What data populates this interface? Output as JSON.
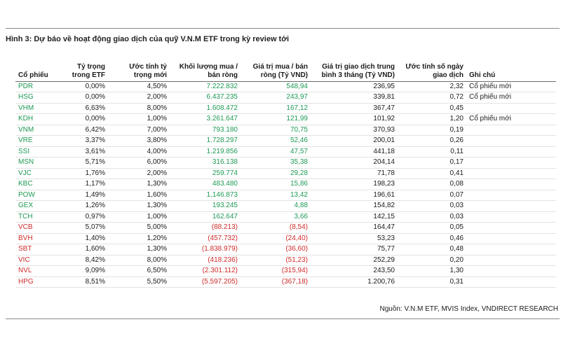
{
  "title": "Hình 3: Dự báo về hoạt động giao dịch của quỹ V.N.M ETF trong kỳ review tới",
  "headers": {
    "ticker": "Cổ phiếu",
    "weight_etf": "Tỷ trọng trong ETF",
    "new_weight": "Ước tính tỷ trọng mới",
    "volume": "Khối lượng mua / bán ròng",
    "net_value": "Giá trị mua / bán ròng (Tỷ VND)",
    "avg_value": "Giá trị giao dịch trung bình 3 tháng (Tỷ VND)",
    "days": "Ước tính số ngày giao dịch",
    "note": "Ghi chú"
  },
  "rows": [
    {
      "ticker": "PDR",
      "weight": "0,00%",
      "new_weight": "4,50%",
      "volume": "7.222.832",
      "net_value": "548,94",
      "avg_value": "236,95",
      "days": "2,32",
      "note": "Cổ phiếu mới",
      "sign": "pos"
    },
    {
      "ticker": "HSG",
      "weight": "0,00%",
      "new_weight": "2,00%",
      "volume": "6.437.235",
      "net_value": "243,97",
      "avg_value": "339,81",
      "days": "0,72",
      "note": "Cổ phiếu mới",
      "sign": "pos"
    },
    {
      "ticker": "VHM",
      "weight": "6,63%",
      "new_weight": "8,00%",
      "volume": "1.608.472",
      "net_value": "167,12",
      "avg_value": "367,47",
      "days": "0,45",
      "note": "",
      "sign": "pos"
    },
    {
      "ticker": "KDH",
      "weight": "0,00%",
      "new_weight": "1,00%",
      "volume": "3.261.647",
      "net_value": "121,99",
      "avg_value": "101,92",
      "days": "1,20",
      "note": "Cổ phiếu mới",
      "sign": "pos"
    },
    {
      "ticker": "VNM",
      "weight": "6,42%",
      "new_weight": "7,00%",
      "volume": "793.180",
      "net_value": "70,75",
      "avg_value": "370,93",
      "days": "0,19",
      "note": "",
      "sign": "pos"
    },
    {
      "ticker": "VRE",
      "weight": "3,37%",
      "new_weight": "3,80%",
      "volume": "1.728.297",
      "net_value": "52,46",
      "avg_value": "200,01",
      "days": "0,26",
      "note": "",
      "sign": "pos"
    },
    {
      "ticker": "SSI",
      "weight": "3,61%",
      "new_weight": "4,00%",
      "volume": "1.219.856",
      "net_value": "47,57",
      "avg_value": "441,18",
      "days": "0,11",
      "note": "",
      "sign": "pos"
    },
    {
      "ticker": "MSN",
      "weight": "5,71%",
      "new_weight": "6,00%",
      "volume": "316.138",
      "net_value": "35,38",
      "avg_value": "204,14",
      "days": "0,17",
      "note": "",
      "sign": "pos"
    },
    {
      "ticker": "VJC",
      "weight": "1,76%",
      "new_weight": "2,00%",
      "volume": "259.774",
      "net_value": "29,28",
      "avg_value": "71,78",
      "days": "0,41",
      "note": "",
      "sign": "pos"
    },
    {
      "ticker": "KBC",
      "weight": "1,17%",
      "new_weight": "1,30%",
      "volume": "483.480",
      "net_value": "15,86",
      "avg_value": "198,23",
      "days": "0,08",
      "note": "",
      "sign": "pos"
    },
    {
      "ticker": "POW",
      "weight": "1,49%",
      "new_weight": "1,60%",
      "volume": "1.146.873",
      "net_value": "13,42",
      "avg_value": "196,61",
      "days": "0,07",
      "note": "",
      "sign": "pos"
    },
    {
      "ticker": "GEX",
      "weight": "1,26%",
      "new_weight": "1,30%",
      "volume": "193.245",
      "net_value": "4,88",
      "avg_value": "154,82",
      "days": "0,03",
      "note": "",
      "sign": "pos"
    },
    {
      "ticker": "TCH",
      "weight": "0,97%",
      "new_weight": "1,00%",
      "volume": "162.647",
      "net_value": "3,66",
      "avg_value": "142,15",
      "days": "0,03",
      "note": "",
      "sign": "pos"
    },
    {
      "ticker": "VCB",
      "weight": "5,07%",
      "new_weight": "5,00%",
      "volume": "(88.213)",
      "net_value": "(8,54)",
      "avg_value": "164,47",
      "days": "0,05",
      "note": "",
      "sign": "neg"
    },
    {
      "ticker": "BVH",
      "weight": "1,40%",
      "new_weight": "1,20%",
      "volume": "(457.732)",
      "net_value": "(24,40)",
      "avg_value": "53,23",
      "days": "0,46",
      "note": "",
      "sign": "neg"
    },
    {
      "ticker": "SBT",
      "weight": "1,60%",
      "new_weight": "1,30%",
      "volume": "(1.838.979)",
      "net_value": "(36,60)",
      "avg_value": "75,77",
      "days": "0,48",
      "note": "",
      "sign": "neg"
    },
    {
      "ticker": "VIC",
      "weight": "8,42%",
      "new_weight": "8,00%",
      "volume": "(418.236)",
      "net_value": "(51,23)",
      "avg_value": "252,29",
      "days": "0,20",
      "note": "",
      "sign": "neg"
    },
    {
      "ticker": "NVL",
      "weight": "9,09%",
      "new_weight": "6,50%",
      "volume": "(2.301.112)",
      "net_value": "(315,94)",
      "avg_value": "243,50",
      "days": "1,30",
      "note": "",
      "sign": "neg"
    },
    {
      "ticker": "HPG",
      "weight": "8,51%",
      "new_weight": "5,50%",
      "volume": "(5.597.205)",
      "net_value": "(367,18)",
      "avg_value": "1.200,76",
      "days": "0,31",
      "note": "",
      "sign": "neg"
    }
  ],
  "source": "Nguồn: V.N.M ETF, MVIS Index, VNDIRECT RESEARCH",
  "colors": {
    "positive": "#1e9a55",
    "negative": "#d02b2b"
  }
}
